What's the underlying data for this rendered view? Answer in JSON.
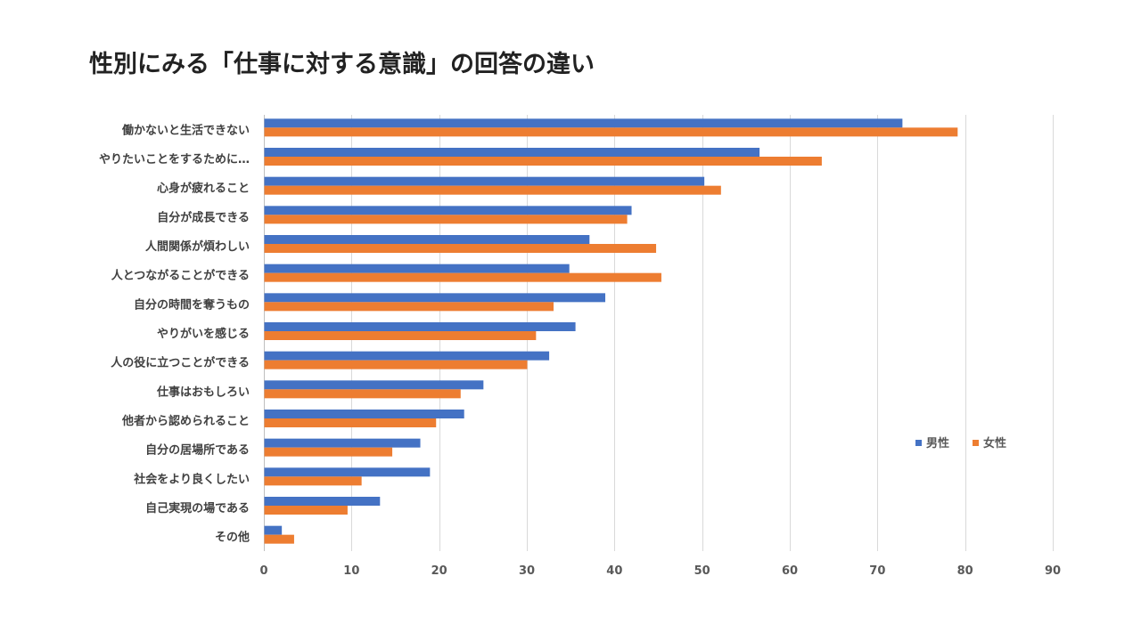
{
  "chart_data": {
    "type": "bar",
    "orientation": "horizontal",
    "title": "性別にみる「仕事に対する意識」の回答の違い",
    "xlabel": "",
    "ylabel": "",
    "xlim": [
      0,
      90
    ],
    "ticks": [
      "0",
      "10",
      "20",
      "30",
      "40",
      "50",
      "60",
      "70",
      "80",
      "90"
    ],
    "grid": true,
    "legend_position": "right",
    "categories": [
      "働かないと生活できない",
      "やりたいことをするために…",
      "心身が疲れること",
      "自分が成長できる",
      "人間関係が煩わしい",
      "人とつながることができる",
      "自分の時間を奪うもの",
      "やりがいを感じる",
      "人の役に立つことができる",
      "仕事はおもしろい",
      "他者から認められること",
      "自分の居場所である",
      "社会をより良くしたい",
      "自己実現の場である",
      "その他"
    ],
    "series": [
      {
        "name": "男性",
        "color": "#4472C4",
        "values": [
          72.8,
          56.5,
          50.2,
          41.9,
          37.1,
          34.8,
          38.9,
          35.5,
          32.5,
          25.0,
          22.8,
          17.8,
          18.9,
          13.2,
          2.0
        ]
      },
      {
        "name": "女性",
        "color": "#ED7D31",
        "values": [
          79.1,
          63.6,
          52.1,
          41.4,
          44.7,
          45.3,
          33.0,
          31.0,
          30.0,
          22.4,
          19.6,
          14.6,
          11.1,
          9.5,
          3.4
        ]
      }
    ]
  }
}
